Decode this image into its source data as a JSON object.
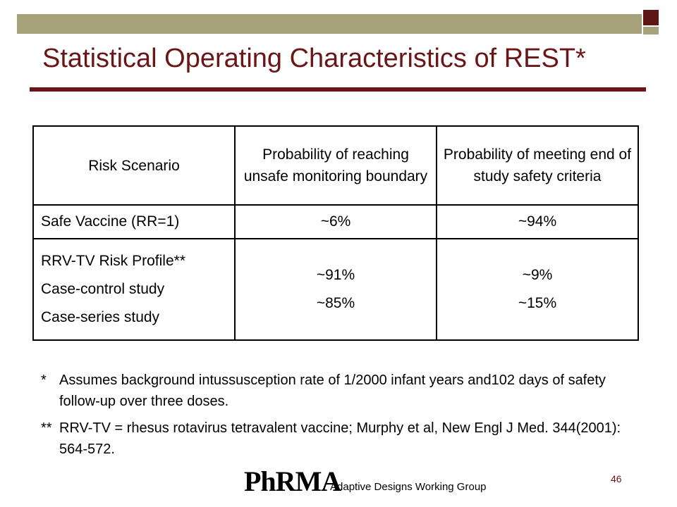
{
  "slide": {
    "title": "Statistical Operating Characteristics of REST*",
    "page_number": "46",
    "footer_logo": "PhRMA",
    "footer_text": "Adaptive Designs Working Group"
  },
  "table": {
    "headers": [
      "Risk Scenario",
      "Probability of reaching unsafe monitoring boundary",
      "Probability of meeting end of study safety criteria"
    ],
    "row1": [
      "Safe Vaccine (RR=1)",
      "~6%",
      "~94%"
    ],
    "row2": {
      "scenario_lines": [
        "RRV-TV Risk Profile**",
        "Case-control study",
        "Case-series study"
      ],
      "unsafe_lines": [
        "~91%",
        "~85%"
      ],
      "meeting_lines": [
        "~9%",
        "~15%"
      ]
    }
  },
  "footnotes": [
    {
      "mark": "*",
      "text": "Assumes background intussusception rate of 1/2000 infant years and102 days of safety follow-up over three doses."
    },
    {
      "mark": "**",
      "text": "RRV-TV = rhesus rotavirus tetravalent vaccine; Murphy et al, New Engl J Med. 344(2001): 564-572."
    }
  ]
}
